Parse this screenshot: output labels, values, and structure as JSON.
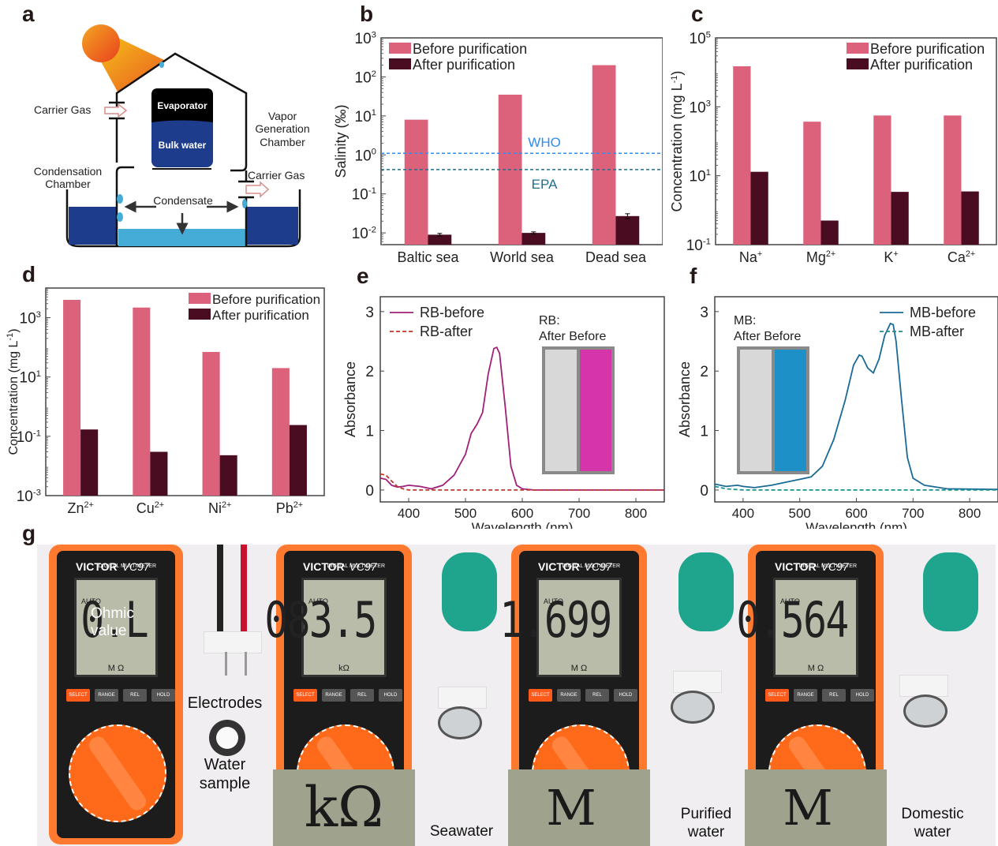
{
  "panels": {
    "a": "a",
    "b": "b",
    "c": "c",
    "d": "d",
    "e": "e",
    "f": "f",
    "g": "g"
  },
  "diagram_a": {
    "carrier_gas_in": "Carrier Gas",
    "evaporator": "Evaporator",
    "bulk_water": "Bulk water",
    "vapor_chamber": [
      "Vapor",
      "Generation",
      "Chamber"
    ],
    "condensation_chamber": [
      "Condensation",
      "Chamber"
    ],
    "carrier_gas_out": "Carrier Gas",
    "condensate": "Condensate"
  },
  "colors": {
    "before": "#dc627c",
    "after": "#4a0c20",
    "who": "#2f8cf0",
    "epa": "#1f6f8b",
    "rb_before": "#a0207a",
    "rb_after": "#c0392b",
    "mb_before": "#1a6a96",
    "mb_after": "#1a9090"
  },
  "chart_data": [
    {
      "id": "b",
      "type": "bar",
      "scale": "log",
      "title": "",
      "xlabel": "",
      "ylabel": "Salinity (‰)",
      "ylim": [
        0.005,
        1000
      ],
      "yticks": [
        "10-2",
        "10-1",
        "100",
        "101",
        "102",
        "103"
      ],
      "categories": [
        "Baltic sea",
        "World sea",
        "Dead sea"
      ],
      "series": [
        {
          "name": "Before purification",
          "values": [
            8,
            35,
            200
          ]
        },
        {
          "name": "After purification",
          "values": [
            0.009,
            0.01,
            0.027
          ],
          "errors": [
            0.0007,
            0.0006,
            0.004
          ]
        }
      ],
      "reference_lines": [
        {
          "label": "WHO",
          "value": 1.1
        },
        {
          "label": "EPA",
          "value": 0.42
        }
      ],
      "legend": "top-left"
    },
    {
      "id": "c",
      "type": "bar",
      "scale": "log",
      "xlabel": "",
      "ylabel": "Concentration (mg L-1)",
      "ylim": [
        0.1,
        100000
      ],
      "yticks": [
        "10-1",
        "101",
        "103",
        "105"
      ],
      "categories": [
        "Na+",
        "Mg2+",
        "K+",
        "Ca2+"
      ],
      "series": [
        {
          "name": "Before purification",
          "values": [
            15000,
            370,
            560,
            560
          ]
        },
        {
          "name": "After purification",
          "values": [
            13,
            0.5,
            3.4,
            3.5
          ]
        }
      ],
      "legend": "top-right"
    },
    {
      "id": "d",
      "type": "bar",
      "scale": "log",
      "xlabel": "",
      "ylabel": "Concentration (mg L-1)",
      "ylim": [
        0.001,
        10000
      ],
      "yticks": [
        "10-3",
        "10-1",
        "101",
        "103"
      ],
      "categories": [
        "Zn2+",
        "Cu2+",
        "Ni2+",
        "Pb2+"
      ],
      "series": [
        {
          "name": "Before purification",
          "values": [
            4000,
            2200,
            70,
            20
          ]
        },
        {
          "name": "After purification",
          "values": [
            0.17,
            0.03,
            0.023,
            0.24
          ]
        }
      ],
      "legend": "top-right"
    },
    {
      "id": "e",
      "type": "line",
      "xlabel": "Wavelength (nm)",
      "ylabel": "Absorbance",
      "xlim": [
        350,
        850
      ],
      "ylim": [
        -0.2,
        3.25
      ],
      "xticks": [
        400,
        500,
        600,
        700,
        800
      ],
      "yticks": [
        0,
        1,
        2,
        3
      ],
      "series": [
        {
          "name": "RB-before",
          "x": [
            350,
            360,
            370,
            380,
            390,
            400,
            420,
            440,
            460,
            480,
            500,
            510,
            520,
            530,
            540,
            550,
            555,
            560,
            570,
            580,
            590,
            600,
            620,
            700,
            850
          ],
          "y": [
            0.2,
            0.18,
            0.08,
            0.05,
            0.06,
            0.08,
            0.06,
            0.02,
            0.08,
            0.25,
            0.6,
            0.95,
            1.1,
            1.3,
            1.95,
            2.38,
            2.4,
            2.3,
            1.4,
            0.4,
            0.08,
            0.02,
            0.0,
            0.0,
            0.0
          ]
        },
        {
          "name": "RB-after",
          "dash": true,
          "x": [
            350,
            360,
            370,
            380,
            390,
            400,
            450,
            850
          ],
          "y": [
            0.27,
            0.25,
            0.15,
            0.06,
            0.02,
            0.0,
            0.0,
            0.0
          ]
        }
      ],
      "inset": {
        "title": "RB:",
        "labels": "After Before"
      },
      "legend": "top-left"
    },
    {
      "id": "f",
      "type": "line",
      "xlabel": "Wavelength (nm)",
      "ylabel": "Absorbance",
      "xlim": [
        350,
        850
      ],
      "ylim": [
        -0.2,
        3.25
      ],
      "xticks": [
        400,
        500,
        600,
        700,
        800
      ],
      "yticks": [
        0,
        1,
        2,
        3
      ],
      "series": [
        {
          "name": "MB-before",
          "x": [
            350,
            370,
            390,
            400,
            420,
            450,
            480,
            500,
            520,
            540,
            560,
            580,
            595,
            605,
            610,
            620,
            630,
            640,
            650,
            660,
            665,
            670,
            680,
            690,
            700,
            720,
            760,
            850
          ],
          "y": [
            0.1,
            0.06,
            0.08,
            0.06,
            0.04,
            0.08,
            0.14,
            0.18,
            0.22,
            0.4,
            0.85,
            1.5,
            2.1,
            2.27,
            2.25,
            2.05,
            1.97,
            2.2,
            2.6,
            2.8,
            2.78,
            2.5,
            1.5,
            0.55,
            0.2,
            0.08,
            0.02,
            0.01
          ]
        },
        {
          "name": "MB-after",
          "dash": true,
          "x": [
            350,
            370,
            400,
            850
          ],
          "y": [
            0.06,
            0.02,
            0.0,
            0.0
          ]
        }
      ],
      "inset": {
        "title": "MB:",
        "labels": "After Before"
      },
      "legend": "top-right"
    }
  ],
  "panel_g": {
    "meters": [
      {
        "brand": "VICTOR",
        "model": "VC97",
        "subtitle": "DIGITAL MULTIMETER",
        "overlay": "Ohmic value",
        "reading": "0.L",
        "unit": "M Ω",
        "auto": "AUTO"
      },
      {
        "brand": "VICTOR",
        "model": "VC97",
        "subtitle": "DIGITAL MULTIMETER",
        "reading": "083.5",
        "unit": "kΩ",
        "auto": "AUTO",
        "zoom_unit": "kΩ",
        "sample": "Seawater"
      },
      {
        "brand": "VICTOR",
        "model": "VC97",
        "subtitle": "DIGITAL MULTIMETER",
        "reading": "1.699",
        "unit": "M Ω",
        "auto": "AUTO",
        "zoom_unit": "M Ω",
        "sample": "Purified water"
      },
      {
        "brand": "VICTOR",
        "model": "VC97",
        "subtitle": "DIGITAL MULTIMETER",
        "reading": "0.564",
        "unit": "M Ω",
        "auto": "AUTO",
        "zoom_unit": "M Ω",
        "sample": "Domestic water"
      }
    ],
    "buttons": [
      "SELECT",
      "RANGE",
      "REL",
      "HOLD"
    ],
    "electrodes_label": "Electrodes",
    "water_sample_label": [
      "Water",
      "sample"
    ],
    "sample_labels": {
      "seawater": "Seawater",
      "purified": [
        "Purified",
        "water"
      ],
      "domestic": [
        "Domestic",
        "water"
      ]
    }
  }
}
